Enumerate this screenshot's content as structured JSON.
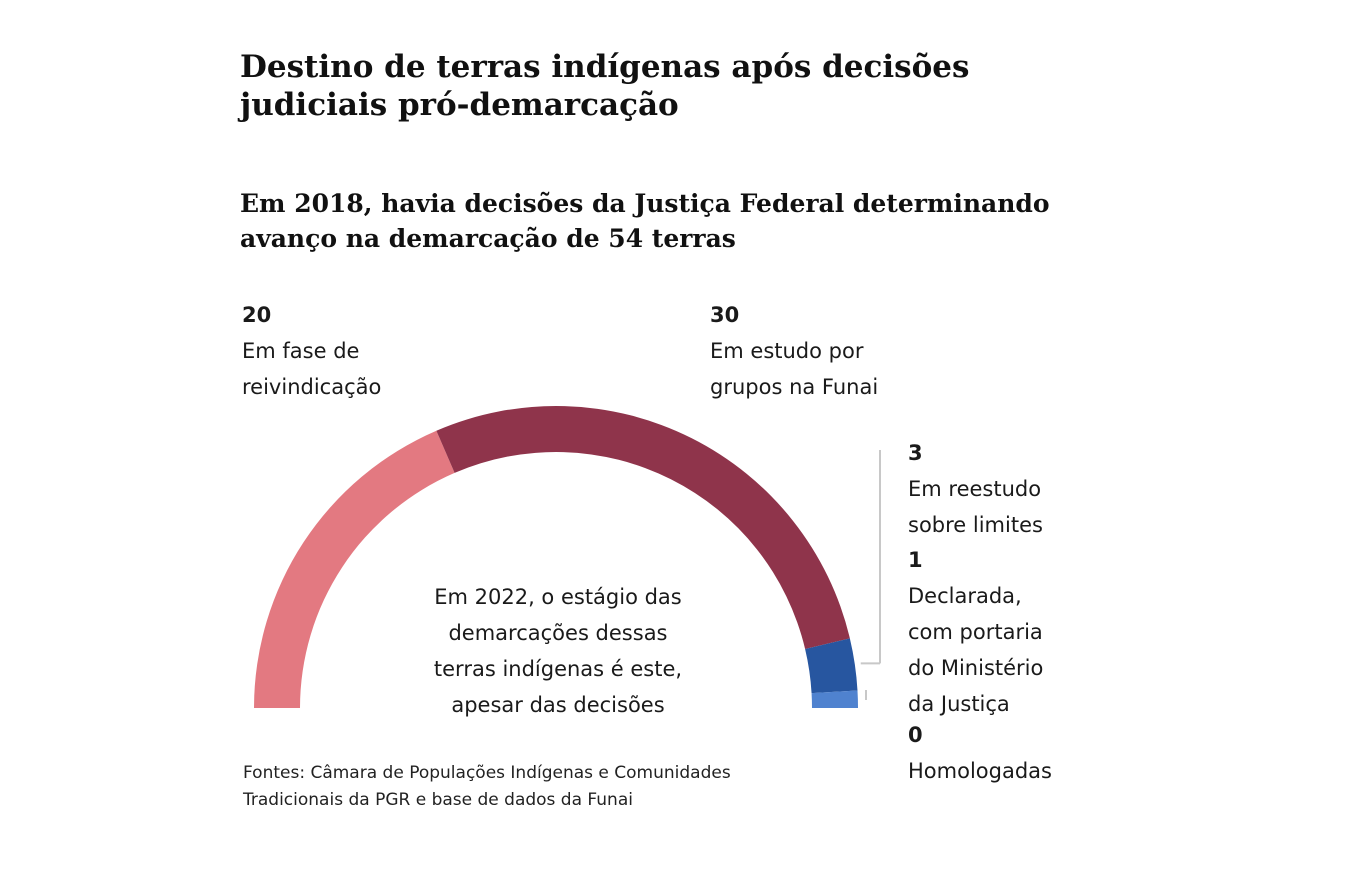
{
  "chart_data": {
    "type": "pie",
    "variant": "semicircle-donut",
    "title": "Destino de terras indígenas após decisões judiciais pró-demarcação",
    "subtitle": "Em 2018, havia decisões da Justiça Federal determinando avanço na demarcação de 54 terras",
    "total": 54,
    "segments": [
      {
        "value": "20",
        "label": "Em fase de reivindicação",
        "label_lines": [
          "Em fase de",
          "reivindicação"
        ],
        "color": "#e37981"
      },
      {
        "value": "30",
        "label": "Em estudo por grupos na Funai",
        "label_lines": [
          "Em estudo por",
          "grupos na Funai"
        ],
        "color": "#8f344b"
      },
      {
        "value": "3",
        "label": "Em reestudo sobre limites",
        "label_lines": [
          "Em reestudo",
          "sobre limites"
        ],
        "color": "#2756a0"
      },
      {
        "value": "1",
        "label": "Declarada, com portaria do Ministério da Justiça",
        "label_lines": [
          "Declarada,",
          "com portaria",
          "do Ministério",
          "da Justiça"
        ],
        "color": "#4f82cf"
      },
      {
        "value": "0",
        "label": "Homologadas",
        "label_lines": [
          "Homologadas"
        ],
        "color": "#b0b0b0"
      }
    ],
    "center_note": "Em 2022, o estágio das demarcações dessas terras indígenas é este, apesar das decisões",
    "center_note_lines": [
      "Em 2022, o estágio das",
      "demarcações dessas",
      "terras indígenas é este,",
      "apesar das decisões"
    ],
    "source": "Fontes: Câmara de Populações Indígenas e Comunidades Tradicionais da PGR e base de dados da Funai",
    "source_lines": [
      "Fontes: Câmara de Populações Indígenas e Comunidades",
      "Tradicionais da PGR e base de dados da Funai"
    ]
  }
}
